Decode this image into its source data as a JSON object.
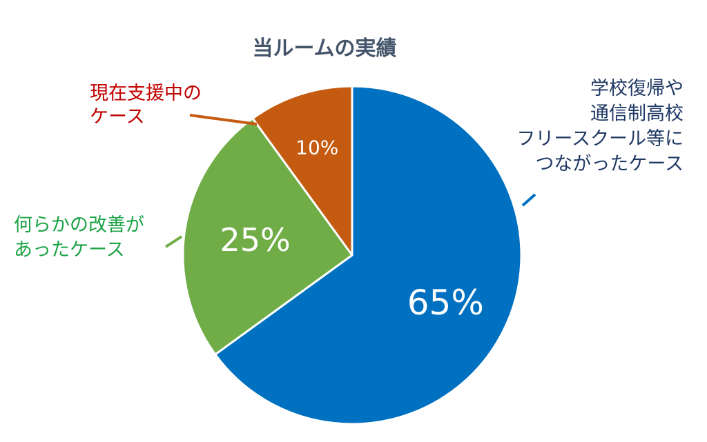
{
  "chart_data": {
    "type": "pie",
    "title": "当ルームの実績",
    "slices": [
      {
        "label_lines": [
          "学校復帰や",
          "通信制高校",
          "フリースクール等に",
          "つながったケース"
        ],
        "value": 65,
        "value_label": "65%",
        "color": "#0070C0",
        "label_color": "#1F3864"
      },
      {
        "label_lines": [
          "何らかの改善が",
          "あったケース"
        ],
        "value": 25,
        "value_label": "25%",
        "color": "#70AD47",
        "label_color": "#1BA345"
      },
      {
        "label_lines": [
          "現在支援中の",
          "ケース"
        ],
        "value": 10,
        "value_label": "10%",
        "color": "#C55A11",
        "label_color": "#C00000"
      }
    ],
    "start": "top",
    "direction": "clockwise",
    "legend": "none"
  }
}
